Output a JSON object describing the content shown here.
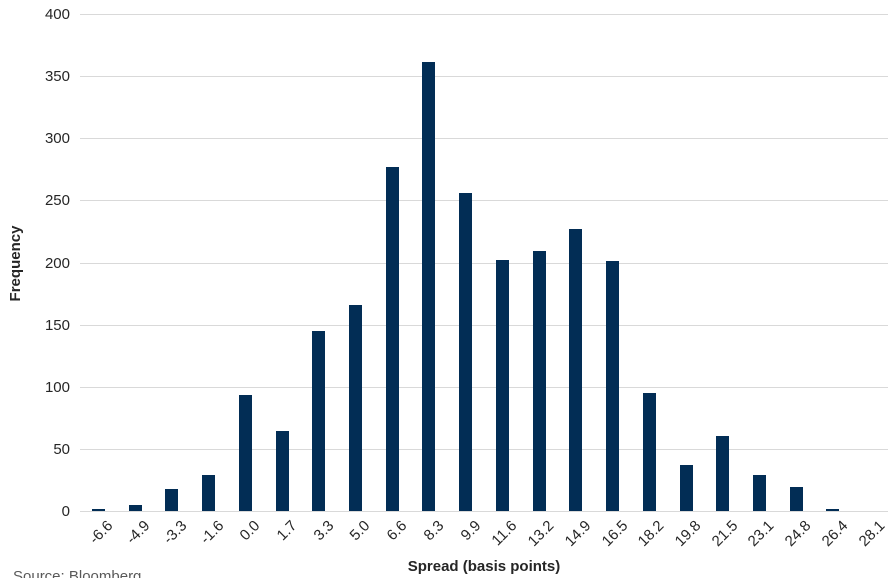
{
  "chart_data": {
    "type": "bar",
    "title": "",
    "xlabel": "Spread (basis points)",
    "ylabel": "Frequency",
    "categories": [
      "-6.6",
      "-4.9",
      "-3.3",
      "-1.6",
      "0.0",
      "1.7",
      "3.3",
      "5.0",
      "6.6",
      "8.3",
      "9.9",
      "11.6",
      "13.2",
      "14.9",
      "16.5",
      "18.2",
      "19.8",
      "21.5",
      "23.1",
      "24.8",
      "26.4",
      "28.1"
    ],
    "values": [
      2,
      5,
      18,
      29,
      93,
      64,
      145,
      166,
      277,
      361,
      256,
      202,
      209,
      227,
      201,
      95,
      37,
      60,
      29,
      19,
      2,
      0
    ],
    "ylim": [
      0,
      400
    ],
    "yticks": [
      "0",
      "50",
      "100",
      "150",
      "200",
      "250",
      "300",
      "350",
      "400"
    ],
    "ytick_values": [
      0,
      50,
      100,
      150,
      200,
      250,
      300,
      350,
      400
    ],
    "grid": true,
    "legend": false,
    "bar_color": "#022d55",
    "gridline_color": "#d9d9d9",
    "axis_text_color": "#262626"
  },
  "footer": {
    "source": "Source: Bloomberg"
  }
}
